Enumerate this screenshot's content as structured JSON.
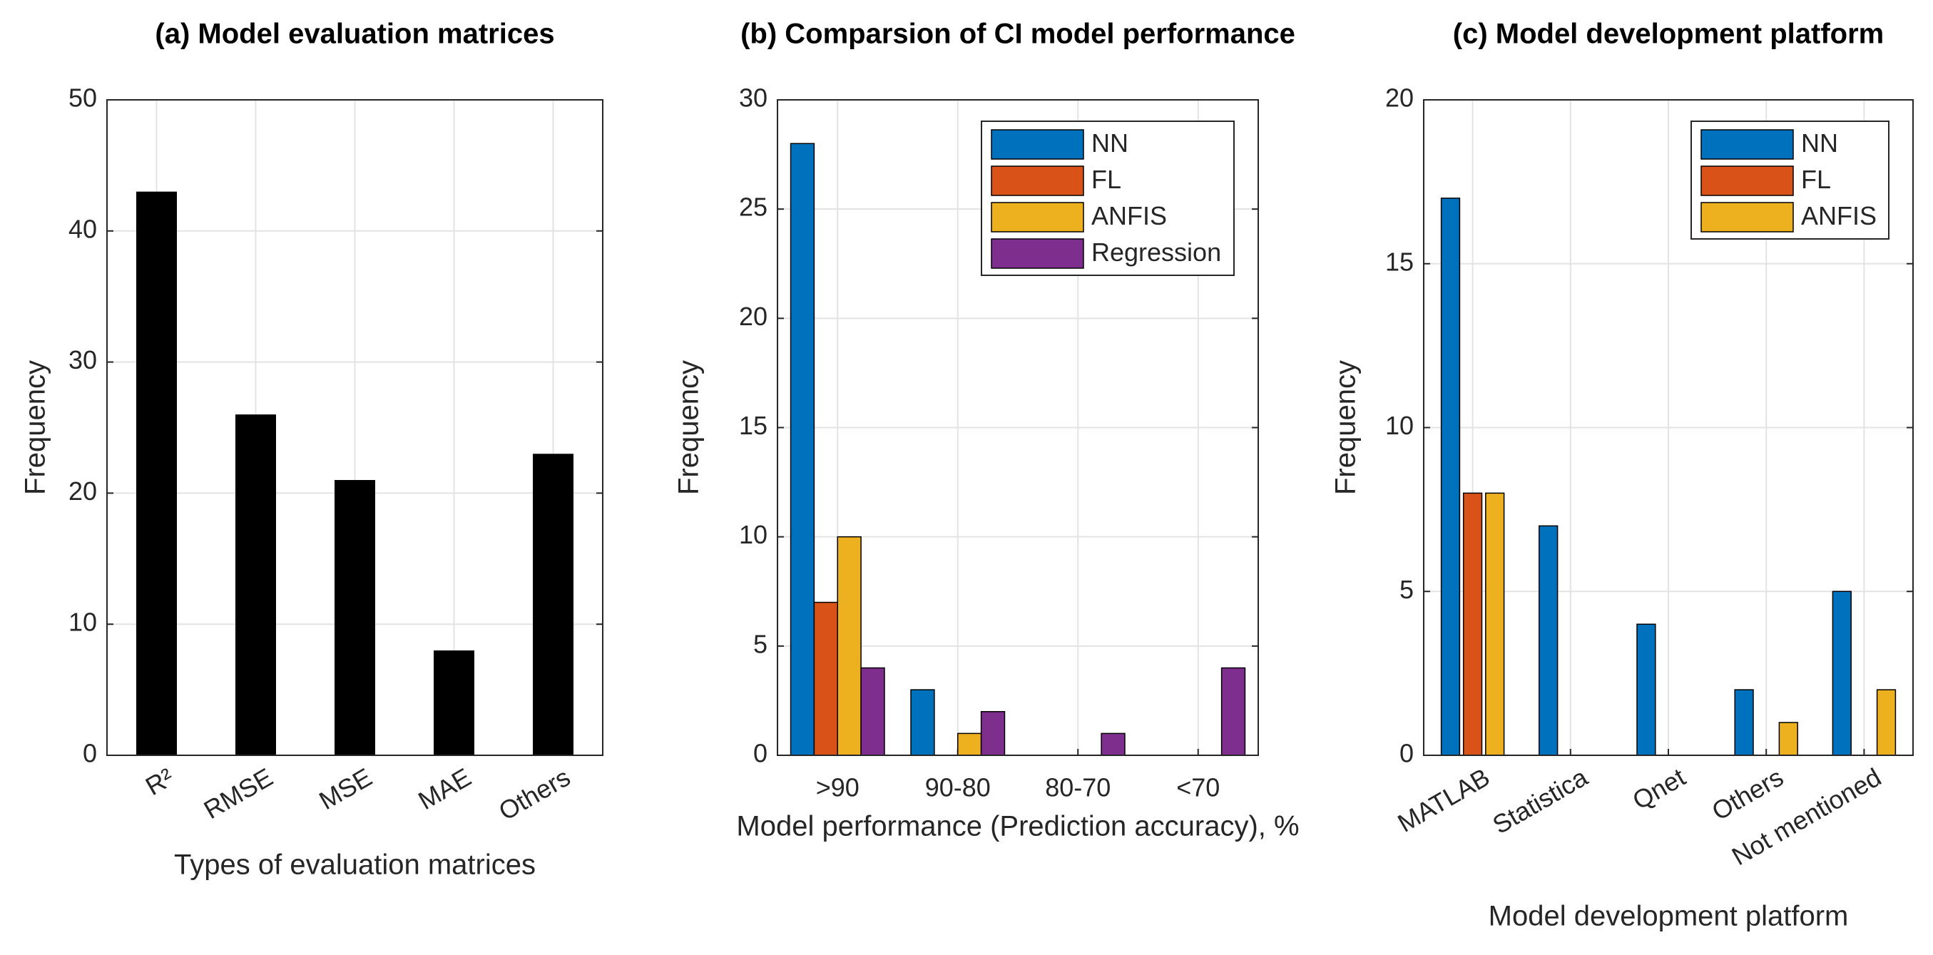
{
  "chart_data": [
    {
      "type": "bar",
      "title": "(a) Model evaluation matrices",
      "xlabel": "Types of evaluation matrices",
      "ylabel": "Frequency",
      "categories": [
        "R²",
        "RMSE",
        "MSE",
        "MAE",
        "Others"
      ],
      "values": [
        43,
        26,
        21,
        8,
        23
      ],
      "color": "#000000",
      "ylim": [
        0,
        50
      ],
      "yticks": [
        0,
        10,
        20,
        30,
        40,
        50
      ],
      "grid": true
    },
    {
      "type": "bar",
      "title": "(b) Comparsion of CI model performance",
      "xlabel": "Model performance (Prediction accuracy), %",
      "ylabel": "Frequency",
      "categories": [
        ">90",
        "90-80",
        "80-70",
        "<70"
      ],
      "series": [
        {
          "name": "NN",
          "color": "#0072bd",
          "values": [
            28,
            3,
            0,
            0
          ]
        },
        {
          "name": "FL",
          "color": "#d95319",
          "values": [
            7,
            0,
            0,
            0
          ]
        },
        {
          "name": "ANFIS",
          "color": "#edb120",
          "values": [
            10,
            1,
            0,
            0
          ]
        },
        {
          "name": "Regression",
          "color": "#7e2f8e",
          "values": [
            4,
            2,
            1,
            4
          ]
        }
      ],
      "ylim": [
        0,
        30
      ],
      "yticks": [
        0,
        5,
        10,
        15,
        20,
        25,
        30
      ],
      "grid": true,
      "legend": "upper right"
    },
    {
      "type": "bar",
      "title": "(c) Model development platform",
      "xlabel": "Model development platform",
      "ylabel": "Frequency",
      "categories": [
        "MATLAB",
        "Statistica",
        "Qnet",
        "Others",
        "Not mentioned"
      ],
      "series": [
        {
          "name": "NN",
          "color": "#0072bd",
          "values": [
            17,
            7,
            4,
            2,
            5
          ]
        },
        {
          "name": "FL",
          "color": "#d95319",
          "values": [
            8,
            0,
            0,
            0,
            0
          ]
        },
        {
          "name": "ANFIS",
          "color": "#edb120",
          "values": [
            8,
            0,
            0,
            1,
            2
          ]
        }
      ],
      "ylim": [
        0,
        20
      ],
      "yticks": [
        0,
        5,
        10,
        15,
        20
      ],
      "grid": true,
      "legend": "upper right"
    }
  ]
}
